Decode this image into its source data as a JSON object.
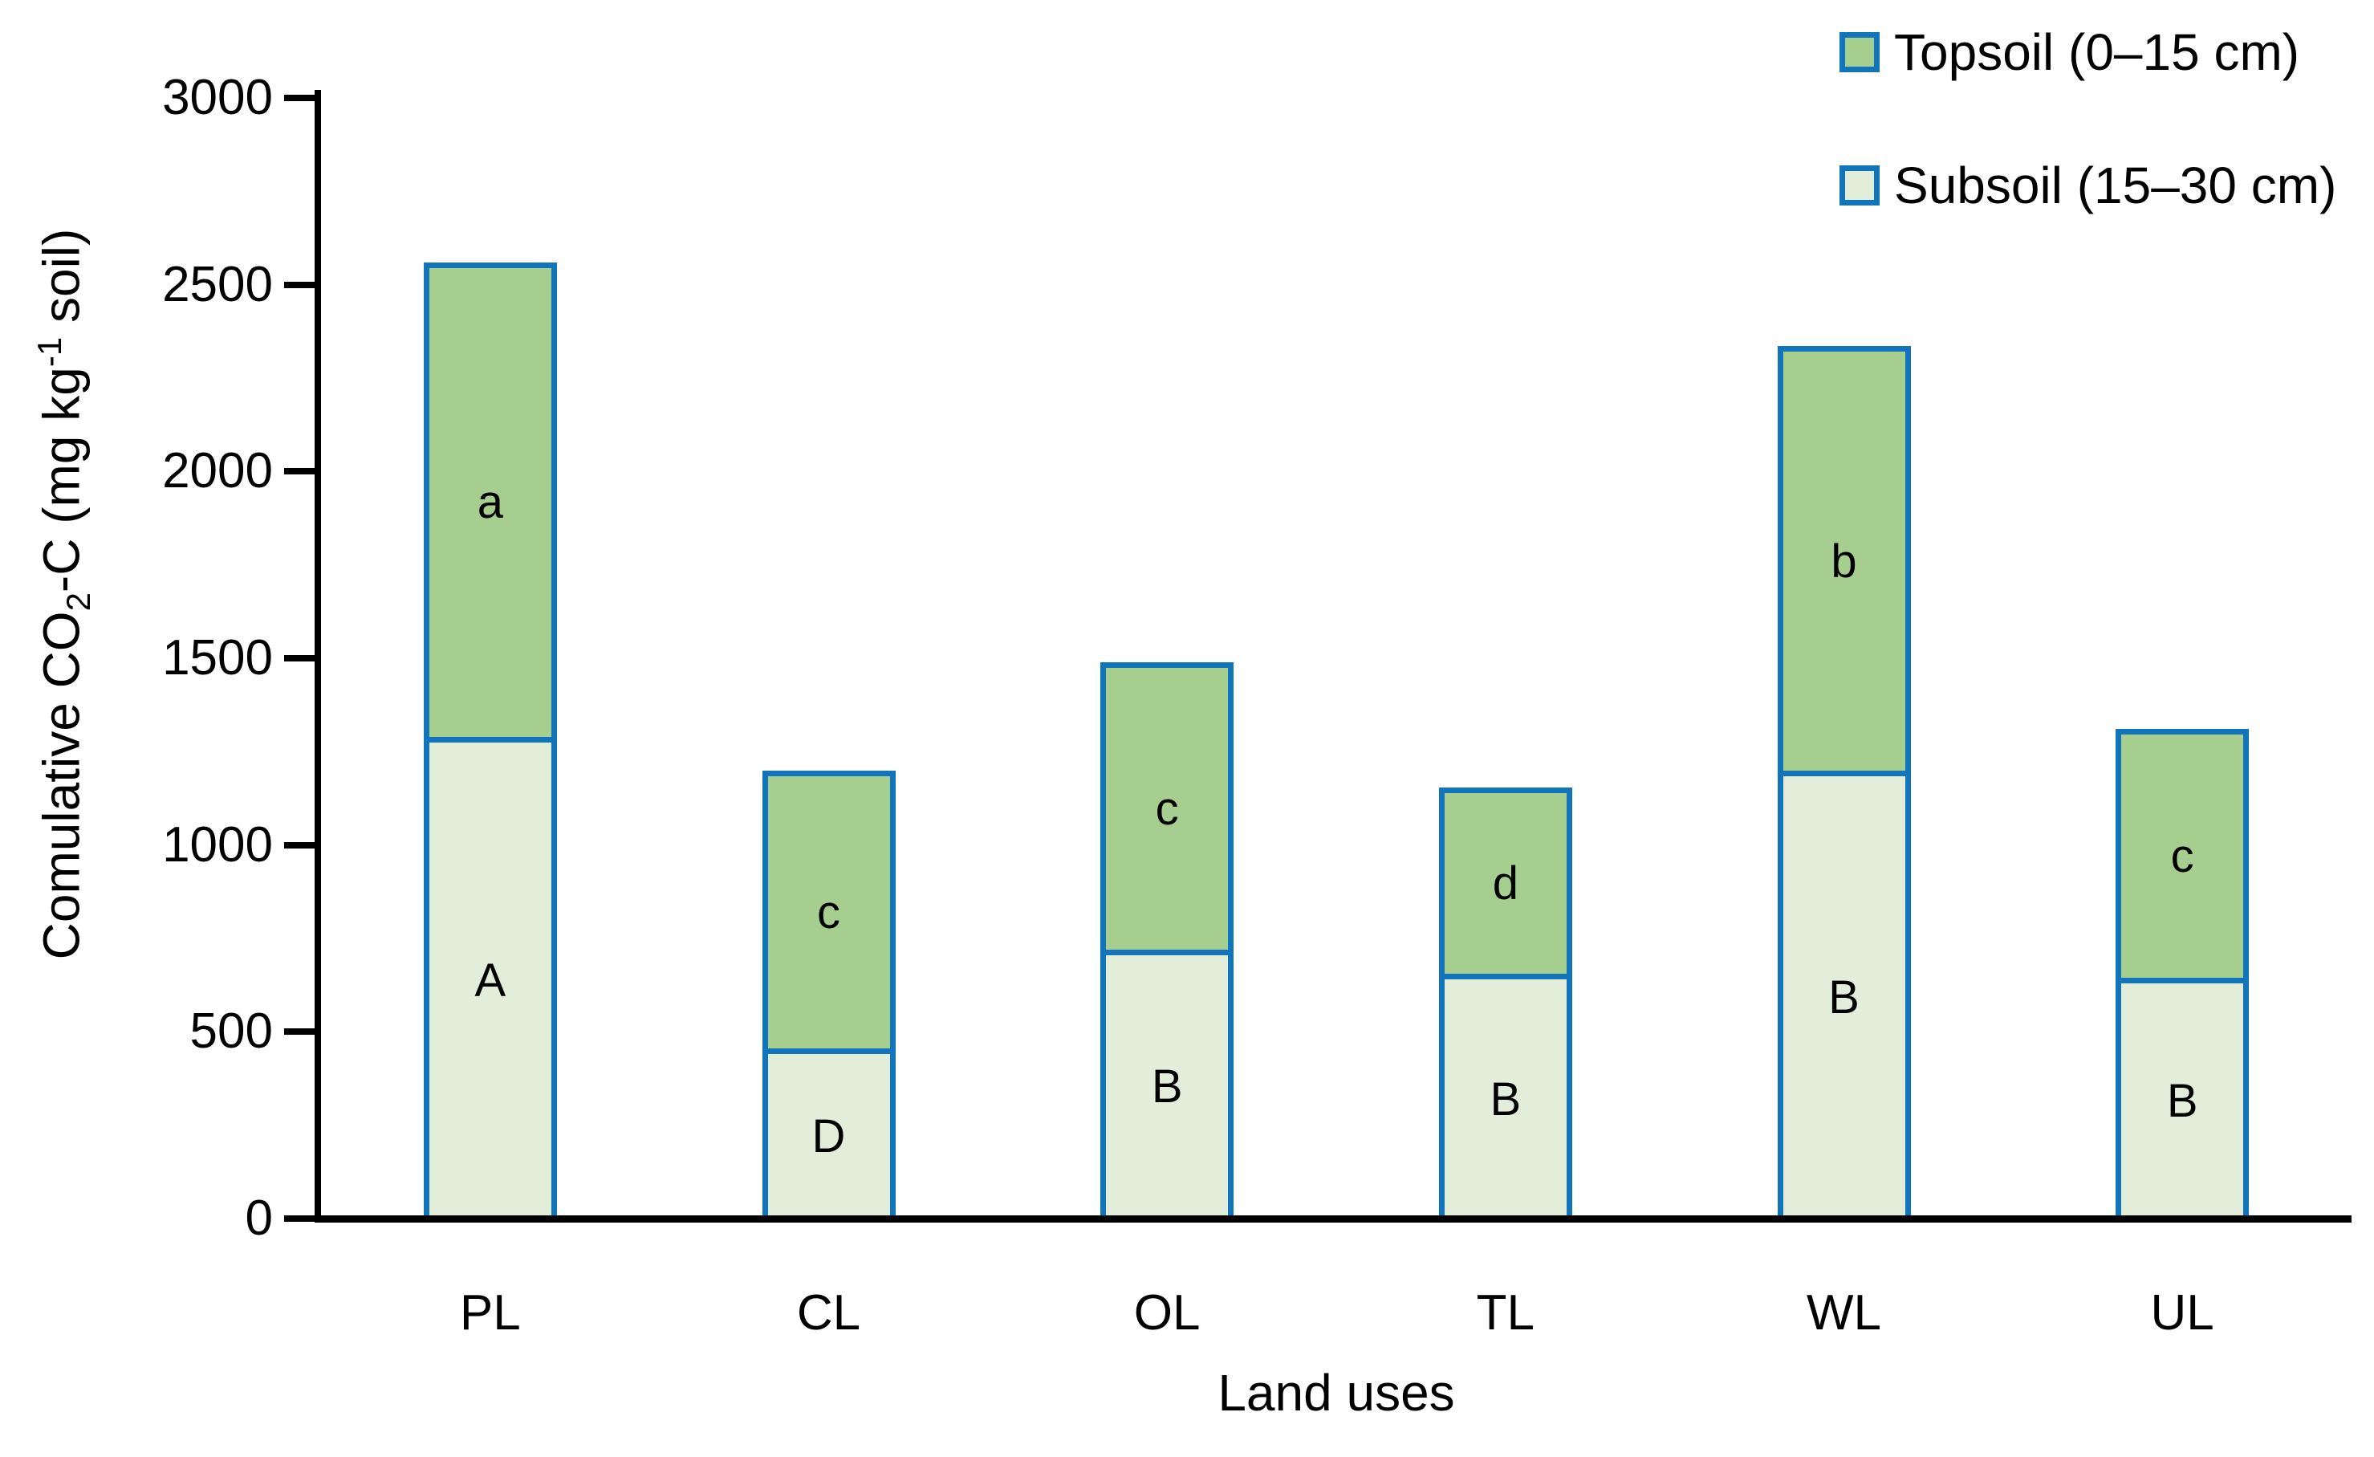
{
  "figure": {
    "background": "#ffffff",
    "text_color": "#000000",
    "ylabel_parts": {
      "pre": "Comulative CO",
      "sub": "2",
      "mid": "-C (mg kg",
      "sup": "-1",
      "post": " soil)"
    }
  },
  "chart_data": {
    "type": "bar",
    "stacked": true,
    "title": "",
    "xlabel": "Land uses",
    "ylabel": "Comulative CO2-C (mg kg-1 soil)",
    "ylim": [
      0,
      3000
    ],
    "yticks": [
      0,
      500,
      1000,
      1500,
      2000,
      2500,
      3000
    ],
    "grid": false,
    "legend_position": "top-right",
    "bar_border_color": "#1274BA",
    "axis_color": "#000000",
    "categories": [
      "PL",
      "CL",
      "OL",
      "TL",
      "WL",
      "UL"
    ],
    "series": [
      {
        "name": "Topsoil (0–15 cm)",
        "stack_position": "top",
        "color": "#A6CE8E",
        "values": [
          1270,
          745,
          770,
          500,
          1135,
          665
        ],
        "segment_labels": [
          "a",
          "c",
          "c",
          "d",
          "b",
          "c"
        ]
      },
      {
        "name": "Subsoil (15–30 cm)",
        "stack_position": "bottom",
        "color": "#E2EEDA",
        "values": [
          1290,
          455,
          720,
          655,
          1200,
          645
        ],
        "segment_labels": [
          "A",
          "D",
          "B",
          "B",
          "B",
          "B"
        ]
      }
    ],
    "totals": [
      2560,
      1200,
      1490,
      1155,
      2335,
      1310
    ]
  }
}
